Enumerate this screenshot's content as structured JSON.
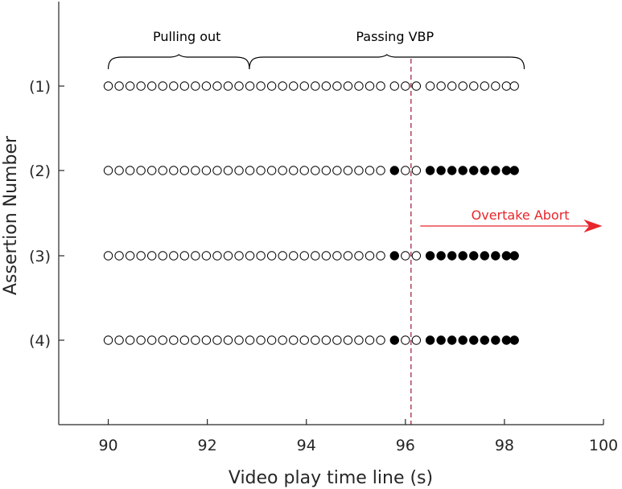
{
  "chart_data": {
    "type": "scatter",
    "xlabel": "Video play time line (s)",
    "ylabel": "Assertion Number",
    "xlim": [
      89,
      100
    ],
    "x_ticks": [
      "90",
      "92",
      "94",
      "96",
      "98",
      "100"
    ],
    "x_tick_values": [
      90,
      92,
      94,
      96,
      98,
      100
    ],
    "rows": [
      {
        "label": "(1)",
        "filled_times": []
      },
      {
        "label": "(2)",
        "filled_times": [
          95.78,
          96.5,
          96.72,
          96.94,
          97.16,
          97.38,
          97.6,
          97.82,
          98.04,
          98.2
        ]
      },
      {
        "label": "(3)",
        "filled_times": [
          95.78,
          96.5,
          96.72,
          96.94,
          97.16,
          97.38,
          97.6,
          97.82,
          98.04,
          98.2
        ]
      },
      {
        "label": "(4)",
        "filled_times": [
          95.78,
          96.5,
          96.72,
          96.94,
          97.16,
          97.38,
          97.6,
          97.82,
          98.04,
          98.2
        ]
      }
    ],
    "point_times": [
      90.0,
      90.22,
      90.44,
      90.66,
      90.88,
      91.1,
      91.32,
      91.54,
      91.76,
      91.98,
      92.2,
      92.42,
      92.64,
      92.86,
      93.08,
      93.3,
      93.52,
      93.74,
      93.96,
      94.18,
      94.4,
      94.62,
      94.84,
      95.06,
      95.28,
      95.5,
      95.78,
      96.0,
      96.22,
      96.5,
      96.72,
      96.94,
      97.16,
      97.38,
      97.6,
      97.82,
      98.04,
      98.2
    ],
    "vertical_marker": {
      "x": 96,
      "color": "#a2142f",
      "style": "dashed"
    },
    "braces": [
      {
        "label": "Pulling out",
        "x_start": 90.0,
        "x_end": 92.85
      },
      {
        "label": "Passing VBP",
        "x_start": 92.85,
        "x_end": 98.4
      }
    ],
    "arrow_annotation": {
      "label": "Overtake Abort",
      "x_start": 96.3,
      "x_end": 99.95,
      "color": "#e8262b"
    },
    "colors": {
      "axis": "#262626",
      "marker_edge": "#000000",
      "marker_fill": "#000000",
      "open_fill": "#ffffff"
    }
  }
}
